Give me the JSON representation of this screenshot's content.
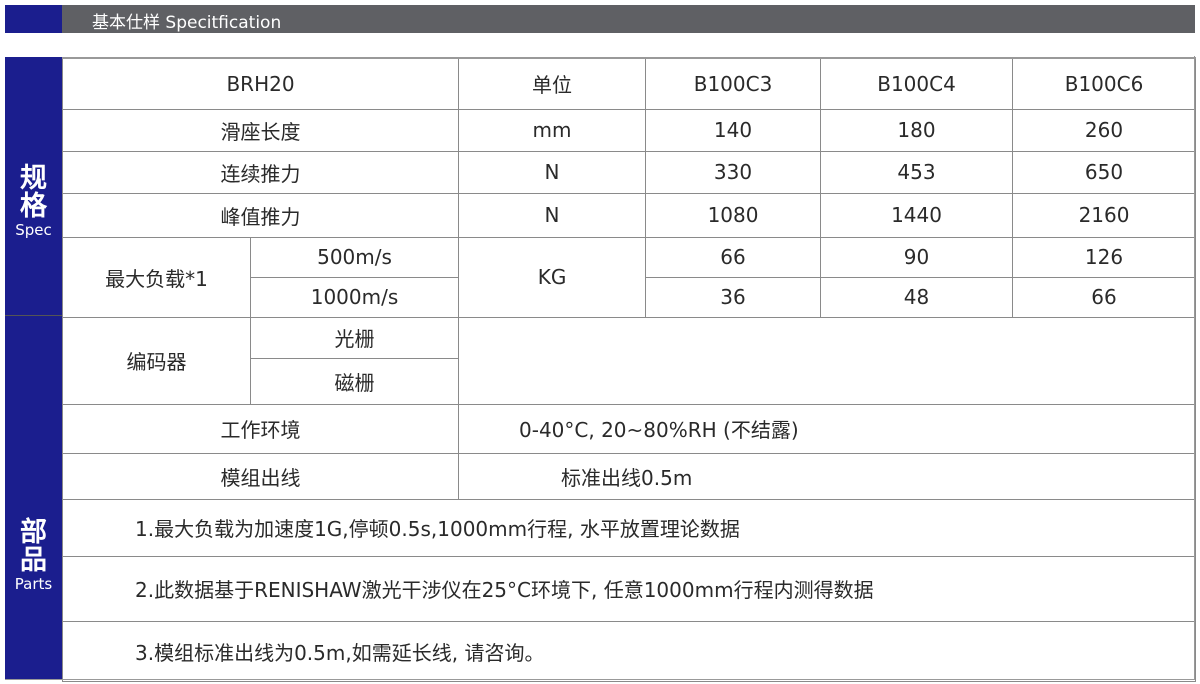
{
  "header": {
    "title": "基本仕样 Specitfication"
  },
  "side": {
    "spec_cn1": "规",
    "spec_cn2": "格",
    "spec_en": "Spec",
    "parts_cn1": "部",
    "parts_cn2": "品",
    "parts_en": "Parts"
  },
  "table": {
    "head": [
      "BRH20",
      "单位",
      "B100C3",
      "B100C4",
      "B100C6"
    ],
    "slide_length": {
      "label": "滑座长度",
      "unit": "mm",
      "values": [
        "140",
        "180",
        "260"
      ]
    },
    "cont_force": {
      "label": "连续推力",
      "unit": "N",
      "values": [
        "330",
        "453",
        "650"
      ]
    },
    "peak_force": {
      "label": "峰值推力",
      "unit": "N",
      "values": [
        "1080",
        "1440",
        "2160"
      ]
    },
    "max_load": {
      "label": "最大负载*1",
      "unit": "KG",
      "rows": [
        {
          "sub": "500m/s",
          "values": [
            "66",
            "90",
            "126"
          ]
        },
        {
          "sub": "1000m/s",
          "values": [
            "36",
            "48",
            "66"
          ]
        }
      ]
    },
    "encoder": {
      "label": "编码器",
      "subs": [
        "光栅",
        "磁栅"
      ]
    },
    "environment": {
      "label": "工作环境",
      "value": "0-40°C, 20~80%RH (不结露)"
    },
    "cable": {
      "label": "模组出线",
      "value": "标准出线0.5m"
    },
    "notes": [
      "1.最大负载为加速度1G,停顿0.5s,1000mm行程, 水平放置理论数据",
      "2.此数据基于RENISHAW激光干涉仪在25°C环境下, 任意1000mm行程内测得数据",
      "3.模组标准出线为0.5m,如需延长线, 请咨询。"
    ]
  },
  "colors": {
    "brand_blue": "#1b1e8e",
    "header_gray": "#5f6064"
  }
}
